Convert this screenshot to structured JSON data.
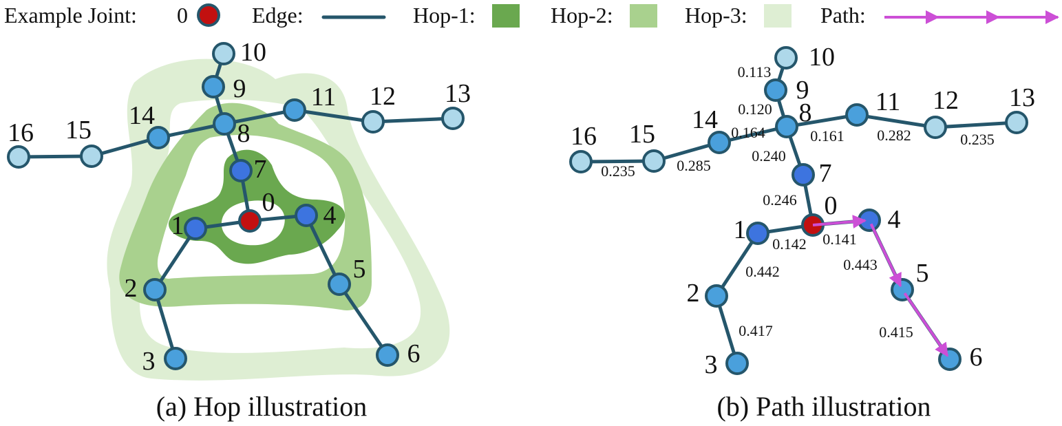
{
  "colors": {
    "edge": "#25566b",
    "node_stroke": "#25566b",
    "joint": "#c21010",
    "hop1_node": "#3d74df",
    "hop2_node": "#4aa0dc",
    "hop3_node": "#aed8ea",
    "hop1_region": "#6aa84f",
    "hop2_region": "#a9d18e",
    "hop3_region": "#deeed3",
    "path": "#cc4fd6"
  },
  "legend": {
    "example_joint_label": "Example Joint:",
    "example_joint_index": "0",
    "edge_label": "Edge:",
    "hop1_label": "Hop-1:",
    "hop2_label": "Hop-2:",
    "hop3_label": "Hop-3:",
    "path_label": "Path:"
  },
  "panel_a": {
    "caption": "(a) Hop illustration",
    "nodes": [
      {
        "id": "0",
        "hop": 0
      },
      {
        "id": "1",
        "hop": 1
      },
      {
        "id": "2",
        "hop": 2
      },
      {
        "id": "3",
        "hop": 3
      },
      {
        "id": "4",
        "hop": 1
      },
      {
        "id": "5",
        "hop": 2
      },
      {
        "id": "6",
        "hop": 3
      },
      {
        "id": "7",
        "hop": 1
      },
      {
        "id": "8",
        "hop": 2
      },
      {
        "id": "9",
        "hop": 3
      },
      {
        "id": "10",
        "hop": 4
      },
      {
        "id": "11",
        "hop": 3
      },
      {
        "id": "12",
        "hop": 4
      },
      {
        "id": "13",
        "hop": 5
      },
      {
        "id": "14",
        "hop": 3
      },
      {
        "id": "15",
        "hop": 4
      },
      {
        "id": "16",
        "hop": 5
      }
    ],
    "edges": [
      [
        "0",
        "1"
      ],
      [
        "0",
        "4"
      ],
      [
        "0",
        "7"
      ],
      [
        "1",
        "2"
      ],
      [
        "2",
        "3"
      ],
      [
        "4",
        "5"
      ],
      [
        "5",
        "6"
      ],
      [
        "7",
        "8"
      ],
      [
        "8",
        "9"
      ],
      [
        "9",
        "10"
      ],
      [
        "8",
        "11"
      ],
      [
        "11",
        "12"
      ],
      [
        "12",
        "13"
      ],
      [
        "8",
        "14"
      ],
      [
        "14",
        "15"
      ],
      [
        "15",
        "16"
      ]
    ]
  },
  "panel_b": {
    "caption": "(b) Path illustration",
    "nodes": [
      {
        "id": "0",
        "hop": 0
      },
      {
        "id": "1",
        "hop": 1
      },
      {
        "id": "2",
        "hop": 2
      },
      {
        "id": "3",
        "hop": 3
      },
      {
        "id": "4",
        "hop": 1
      },
      {
        "id": "5",
        "hop": 2
      },
      {
        "id": "6",
        "hop": 3
      },
      {
        "id": "7",
        "hop": 1
      },
      {
        "id": "8",
        "hop": 2
      },
      {
        "id": "9",
        "hop": 3
      },
      {
        "id": "10",
        "hop": 4
      },
      {
        "id": "11",
        "hop": 3
      },
      {
        "id": "12",
        "hop": 4
      },
      {
        "id": "13",
        "hop": 5
      },
      {
        "id": "14",
        "hop": 3
      },
      {
        "id": "15",
        "hop": 4
      },
      {
        "id": "16",
        "hop": 5
      }
    ],
    "edges": [
      {
        "a": "0",
        "b": "7",
        "w": "0.246"
      },
      {
        "a": "0",
        "b": "1",
        "w": "0.142"
      },
      {
        "a": "0",
        "b": "4",
        "w": "0.141"
      },
      {
        "a": "1",
        "b": "2",
        "w": "0.442"
      },
      {
        "a": "2",
        "b": "3",
        "w": "0.417"
      },
      {
        "a": "4",
        "b": "5",
        "w": "0.443"
      },
      {
        "a": "5",
        "b": "6",
        "w": "0.415"
      },
      {
        "a": "7",
        "b": "8",
        "w": "0.240"
      },
      {
        "a": "8",
        "b": "9",
        "w": "0.120"
      },
      {
        "a": "9",
        "b": "10",
        "w": "0.113"
      },
      {
        "a": "8",
        "b": "11",
        "w": "0.161"
      },
      {
        "a": "11",
        "b": "12",
        "w": "0.282"
      },
      {
        "a": "12",
        "b": "13",
        "w": "0.235"
      },
      {
        "a": "8",
        "b": "14",
        "w": "0.164"
      },
      {
        "a": "14",
        "b": "15",
        "w": "0.285"
      },
      {
        "a": "15",
        "b": "16",
        "w": "0.235"
      }
    ],
    "path": [
      "0",
      "4",
      "5",
      "6"
    ]
  }
}
